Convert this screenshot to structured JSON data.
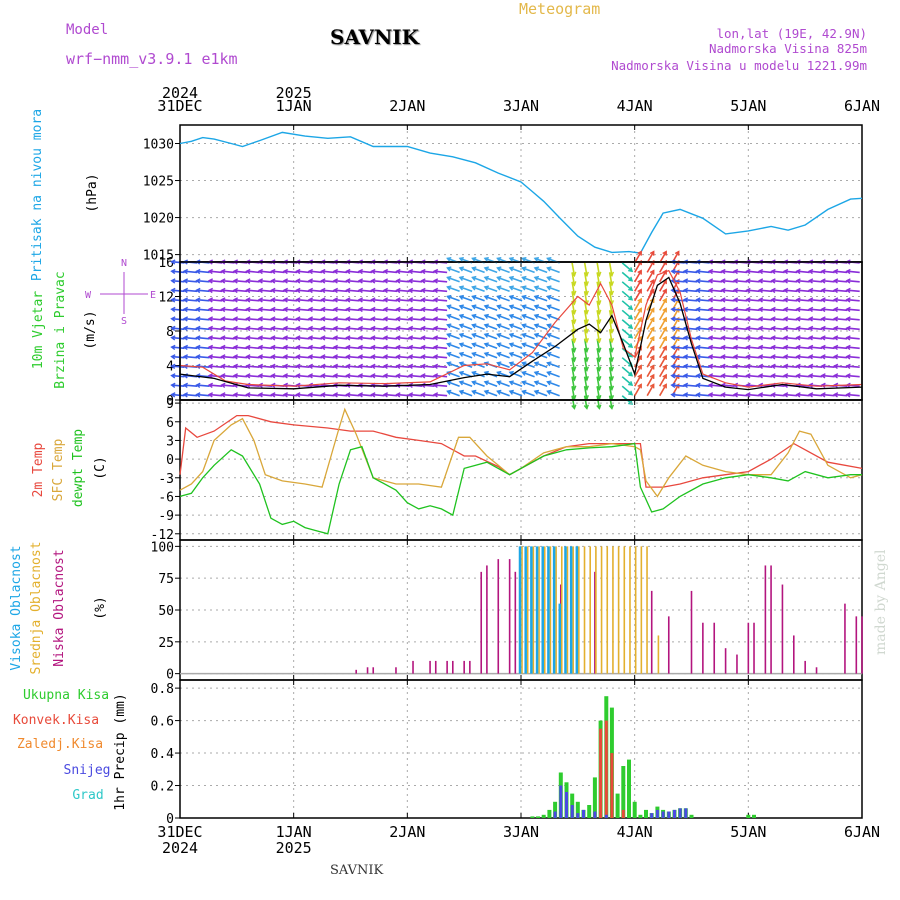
{
  "header": {
    "model_label": "Model",
    "model_name": "wrf−nmm_v3.9.1  e1km",
    "station": "SAVNIK",
    "title": "Meteogram",
    "coords": "lon,lat (19E, 42.9N)",
    "altitude": "Nadmorska Visina 825m",
    "model_altitude": "Nadmorska Visina u modelu 1221.99m",
    "credit": "made by Angel",
    "footer_station": "SAVNIK"
  },
  "colors": {
    "pressure": "#1ca6e6",
    "t2m": "#e8483e",
    "sfc": "#d9a73a",
    "dew": "#1fc21f",
    "high_cloud": "#1ca6e6",
    "mid_cloud": "#e3b02e",
    "low_cloud": "#b3157e",
    "total_precip": "#2ecc2e",
    "conv_precip": "#e84a3a",
    "frz_precip": "#f08a2e",
    "snow": "#4a4ae0",
    "grad": "#2ec8c8",
    "purple_text": "#b04ad0",
    "title_orange": "#e3b84a"
  },
  "chart_data": [
    {
      "type": "line",
      "panel": "pressure",
      "ylabel_left": "Pritisak na nivou mora",
      "unit": "(hPa)",
      "ylim": [
        1014,
        1032.5
      ],
      "yticks": [
        1015,
        1020,
        1025,
        1030
      ],
      "xticks_top": [
        {
          "date": "31DEC",
          "year": "2024"
        },
        {
          "date": "1JAN",
          "year": "2025"
        },
        {
          "date": "2JAN",
          "year": ""
        },
        {
          "date": "3JAN",
          "year": ""
        },
        {
          "date": "4JAN",
          "year": ""
        },
        {
          "date": "5JAN",
          "year": ""
        },
        {
          "date": "6JAN",
          "year": ""
        }
      ],
      "series": [
        {
          "key": "pressure",
          "x": [
            0,
            0.1,
            0.2,
            0.3,
            0.45,
            0.55,
            0.7,
            0.9,
            1.1,
            1.3,
            1.5,
            1.7,
            2,
            2.2,
            2.4,
            2.6,
            2.8,
            3,
            3.1,
            3.2,
            3.35,
            3.5,
            3.65,
            3.8,
            3.95,
            4.05,
            4.15,
            4.25,
            4.4,
            4.6,
            4.8,
            5,
            5.2,
            5.35,
            5.5,
            5.7,
            5.9,
            6
          ],
          "values": [
            1030,
            1030.3,
            1030.8,
            1030.6,
            1030,
            1029.6,
            1030.4,
            1031.5,
            1031,
            1030.7,
            1030.9,
            1029.6,
            1029.6,
            1028.7,
            1028.2,
            1027.4,
            1026,
            1024.8,
            1023.5,
            1022.2,
            1019.8,
            1017.5,
            1016,
            1015.3,
            1015.4,
            1015.2,
            1018,
            1020.6,
            1021.1,
            1019.9,
            1017.8,
            1018.2,
            1018.8,
            1018.3,
            1019,
            1021.1,
            1022.5,
            1022.6
          ]
        }
      ]
    },
    {
      "type": "line",
      "panel": "wind",
      "ylabel_left_1": "10m Vjetar",
      "ylabel_left_2": "Brzina i Pravac",
      "unit": "(m/s)",
      "compass": {
        "n": "N",
        "s": "S",
        "e": "E",
        "w": "W"
      },
      "ylim": [
        0,
        16
      ],
      "yticks": [
        0,
        4,
        8,
        12,
        16
      ],
      "series": [
        {
          "key": "wind_speed",
          "x": [
            0,
            0.3,
            0.6,
            1,
            1.4,
            1.8,
            2.2,
            2.5,
            2.7,
            2.9,
            3.1,
            3.3,
            3.5,
            3.6,
            3.7,
            3.8,
            3.9,
            4,
            4.1,
            4.2,
            4.3,
            4.4,
            4.5,
            4.6,
            4.8,
            5,
            5.3,
            5.6,
            6
          ],
          "values": [
            3,
            2.5,
            1.4,
            1.3,
            1.7,
            1.6,
            1.8,
            2.6,
            3,
            2.7,
            4.5,
            6.2,
            8.2,
            8.8,
            7.8,
            9.8,
            6.5,
            3,
            9.2,
            13.3,
            14.2,
            11.2,
            6.5,
            2.5,
            1.5,
            1.2,
            1.8,
            1.3,
            1.5
          ]
        },
        {
          "key": "wind_gust",
          "x": [
            0,
            0.2,
            0.4,
            0.6,
            1,
            1.4,
            1.8,
            2.2,
            2.5,
            2.7,
            2.9,
            3.1,
            3.3,
            3.5,
            3.6,
            3.7,
            3.8,
            3.9,
            4,
            4.1,
            4.2,
            4.3,
            4.4,
            4.5,
            4.6,
            4.8,
            5,
            5.3,
            5.6,
            6
          ],
          "values": [
            4,
            3.8,
            2.2,
            1.8,
            1.6,
            2,
            1.9,
            2.1,
            4,
            4.2,
            3.5,
            5.5,
            9,
            12,
            11,
            13.5,
            11,
            6,
            5,
            11,
            14.5,
            15,
            12.5,
            7,
            3,
            2,
            1.5,
            2,
            1.6,
            1.8
          ]
        }
      ]
    },
    {
      "type": "line",
      "panel": "temperature",
      "ylabel_left_1": "2m Temp",
      "ylabel_left_2": "SFC Temp",
      "ylabel_left_3": "dewpt Temp",
      "unit": "(C)",
      "ylim": [
        -13,
        9.5
      ],
      "yticks": [
        -12,
        -9,
        -6,
        -3,
        0,
        3,
        6,
        9
      ],
      "series": [
        {
          "key": "t2m",
          "x": [
            0,
            0.05,
            0.15,
            0.3,
            0.5,
            0.6,
            0.8,
            1,
            1.3,
            1.5,
            1.7,
            1.9,
            2.1,
            2.3,
            2.5,
            2.6,
            2.8,
            2.9,
            3,
            3.2,
            3.4,
            3.6,
            3.8,
            4.05,
            4.1,
            4.25,
            4.4,
            4.6,
            4.8,
            5,
            5.2,
            5.4,
            5.5,
            5.7,
            6
          ],
          "values": [
            -2.5,
            5,
            3.5,
            4.5,
            7,
            7,
            6,
            5.5,
            5,
            4.5,
            4.5,
            3.5,
            3,
            2.5,
            0.5,
            0.5,
            -1.2,
            -2.5,
            -1.5,
            0.5,
            2,
            2.5,
            2.5,
            2.5,
            -4.5,
            -4.5,
            -4,
            -3,
            -2.5,
            -2,
            0,
            2.5,
            1.5,
            -0.5,
            -1.5
          ]
        },
        {
          "key": "sfc",
          "x": [
            0,
            0.1,
            0.2,
            0.3,
            0.45,
            0.55,
            0.65,
            0.75,
            0.9,
            1.1,
            1.25,
            1.4,
            1.45,
            1.55,
            1.7,
            1.9,
            2.1,
            2.3,
            2.45,
            2.55,
            2.7,
            2.8,
            2.9,
            3,
            3.2,
            3.4,
            3.6,
            3.8,
            4,
            4.05,
            4.1,
            4.2,
            4.3,
            4.45,
            4.6,
            4.8,
            5,
            5.2,
            5.35,
            5.45,
            5.55,
            5.7,
            5.9,
            6
          ],
          "values": [
            -5,
            -4,
            -2,
            3,
            5.5,
            6.5,
            3,
            -2.5,
            -3.5,
            -4,
            -4.5,
            5,
            8,
            4,
            -3,
            -4,
            -4,
            -4.5,
            3.5,
            3.5,
            0.5,
            -1,
            -2.5,
            -1.5,
            1,
            2,
            2,
            2.5,
            2,
            1.5,
            -3.5,
            -6,
            -3,
            0.5,
            -1,
            -2,
            -2.5,
            -2.5,
            1,
            4.5,
            4,
            -1,
            -3,
            -2.5
          ]
        },
        {
          "key": "dew",
          "x": [
            0,
            0.1,
            0.2,
            0.3,
            0.45,
            0.55,
            0.7,
            0.8,
            0.9,
            1,
            1.1,
            1.2,
            1.3,
            1.4,
            1.5,
            1.6,
            1.7,
            1.9,
            2,
            2.1,
            2.2,
            2.3,
            2.4,
            2.5,
            2.7,
            2.9,
            3,
            3.2,
            3.4,
            3.6,
            3.8,
            4,
            4.05,
            4.15,
            4.25,
            4.4,
            4.6,
            4.8,
            5,
            5.2,
            5.35,
            5.5,
            5.7,
            5.9,
            6
          ],
          "values": [
            -6,
            -5.5,
            -3,
            -1,
            1.5,
            0.5,
            -4,
            -9.5,
            -10.5,
            -10,
            -11,
            -11.5,
            -12,
            -4,
            1.5,
            2,
            -3,
            -5,
            -7,
            -8,
            -7.5,
            -8,
            -9,
            -1.5,
            -0.5,
            -2.5,
            -1.5,
            0.5,
            1.5,
            1.8,
            2,
            2.5,
            -4.5,
            -8.5,
            -8,
            -6,
            -4,
            -3,
            -2.5,
            -3,
            -3.5,
            -2,
            -3,
            -2.5,
            -2.5
          ]
        }
      ]
    },
    {
      "type": "bar",
      "panel": "cloud",
      "ylabel_left_1": "Visoka Oblacnost",
      "ylabel_left_2": "Srednja Oblacnost",
      "ylabel_left_3": "Niska Oblacnost",
      "unit": "(%)",
      "ylim": [
        -5,
        105
      ],
      "yticks": [
        0,
        25,
        50,
        75,
        100
      ],
      "series": [
        {
          "key": "low",
          "x": [
            1.55,
            1.65,
            1.7,
            1.9,
            2.05,
            2.2,
            2.25,
            2.35,
            2.4,
            2.5,
            2.55,
            2.65,
            2.7,
            2.8,
            2.9,
            2.95,
            3.35,
            3.65,
            4.15,
            4.3,
            4.5,
            4.6,
            4.7,
            4.8,
            4.9,
            5,
            5.05,
            5.15,
            5.2,
            5.3,
            5.4,
            5.5,
            5.6,
            5.85,
            5.95,
            6
          ],
          "values": [
            3,
            5,
            5,
            5,
            10,
            10,
            10,
            10,
            10,
            10,
            10,
            80,
            85,
            90,
            90,
            80,
            70,
            80,
            65,
            45,
            65,
            40,
            40,
            20,
            15,
            40,
            40,
            85,
            85,
            70,
            30,
            10,
            5,
            55,
            45,
            45
          ]
        },
        {
          "key": "mid",
          "x": [
            3,
            3.05,
            3.1,
            3.15,
            3.2,
            3.25,
            3.3,
            3.35,
            3.4,
            3.45,
            3.5,
            3.55,
            3.6,
            3.65,
            3.7,
            3.75,
            3.8,
            3.85,
            3.9,
            3.95,
            4,
            4.05,
            4.1,
            4.2
          ],
          "values": [
            100,
            100,
            100,
            100,
            100,
            100,
            100,
            100,
            100,
            100,
            100,
            100,
            100,
            100,
            100,
            100,
            100,
            100,
            100,
            100,
            100,
            100,
            100,
            30
          ]
        },
        {
          "key": "high",
          "x": [
            3,
            3.05,
            3.1,
            3.15,
            3.2,
            3.25,
            3.3,
            3.35,
            3.4,
            3.45,
            3.5
          ],
          "values": [
            100,
            100,
            100,
            100,
            100,
            100,
            100,
            55,
            100,
            100,
            100
          ]
        }
      ]
    },
    {
      "type": "bar",
      "panel": "precip",
      "ylabel_left_1": "Ukupna Kisa",
      "ylabel_left_2": "Konvek.Kisa",
      "ylabel_left_3": "Zaledj.Kisa",
      "ylabel_left_4": "Snijeg",
      "ylabel_left_5": "Grad",
      "ylabel_right": "1hr Precip (mm)",
      "ylim": [
        0,
        0.85
      ],
      "yticks": [
        0,
        0.2,
        0.4,
        0.6,
        0.8
      ],
      "xticks_bottom": [
        {
          "date": "31DEC",
          "year": "2024"
        },
        {
          "date": "1JAN",
          "year": "2025"
        },
        {
          "date": "2JAN",
          "year": ""
        },
        {
          "date": "3JAN",
          "year": ""
        },
        {
          "date": "4JAN",
          "year": ""
        },
        {
          "date": "5JAN",
          "year": ""
        },
        {
          "date": "6JAN",
          "year": ""
        }
      ],
      "series": [
        {
          "key": "total",
          "x": [
            3.1,
            3.15,
            3.2,
            3.25,
            3.3,
            3.35,
            3.4,
            3.45,
            3.5,
            3.55,
            3.6,
            3.65,
            3.7,
            3.75,
            3.8,
            3.85,
            3.9,
            3.95,
            4,
            4.05,
            4.1,
            4.15,
            4.2,
            4.25,
            4.3,
            4.35,
            4.4,
            4.45,
            4.5,
            5,
            5.05
          ],
          "values": [
            0.01,
            0.01,
            0.02,
            0.05,
            0.1,
            0.28,
            0.22,
            0.15,
            0.1,
            0.05,
            0.08,
            0.25,
            0.6,
            0.75,
            0.68,
            0.15,
            0.32,
            0.36,
            0.1,
            0.02,
            0.05,
            0.03,
            0.07,
            0.05,
            0.04,
            0.05,
            0.06,
            0.06,
            0.02,
            0.02,
            0.02
          ]
        },
        {
          "key": "conv",
          "x": [
            3.65,
            3.7,
            3.75,
            3.8,
            3.9
          ],
          "values": [
            0.02,
            0.55,
            0.6,
            0.4,
            0.05
          ]
        },
        {
          "key": "snow",
          "x": [
            3.3,
            3.35,
            3.4,
            3.45,
            3.5,
            3.55,
            3.65,
            3.75,
            4.15,
            4.2,
            4.25,
            4.3,
            4.35,
            4.4,
            4.45
          ],
          "values": [
            0.04,
            0.2,
            0.16,
            0.08,
            0.03,
            0.05,
            0.04,
            0.02,
            0.03,
            0.05,
            0.04,
            0.04,
            0.05,
            0.06,
            0.06
          ]
        }
      ]
    }
  ]
}
